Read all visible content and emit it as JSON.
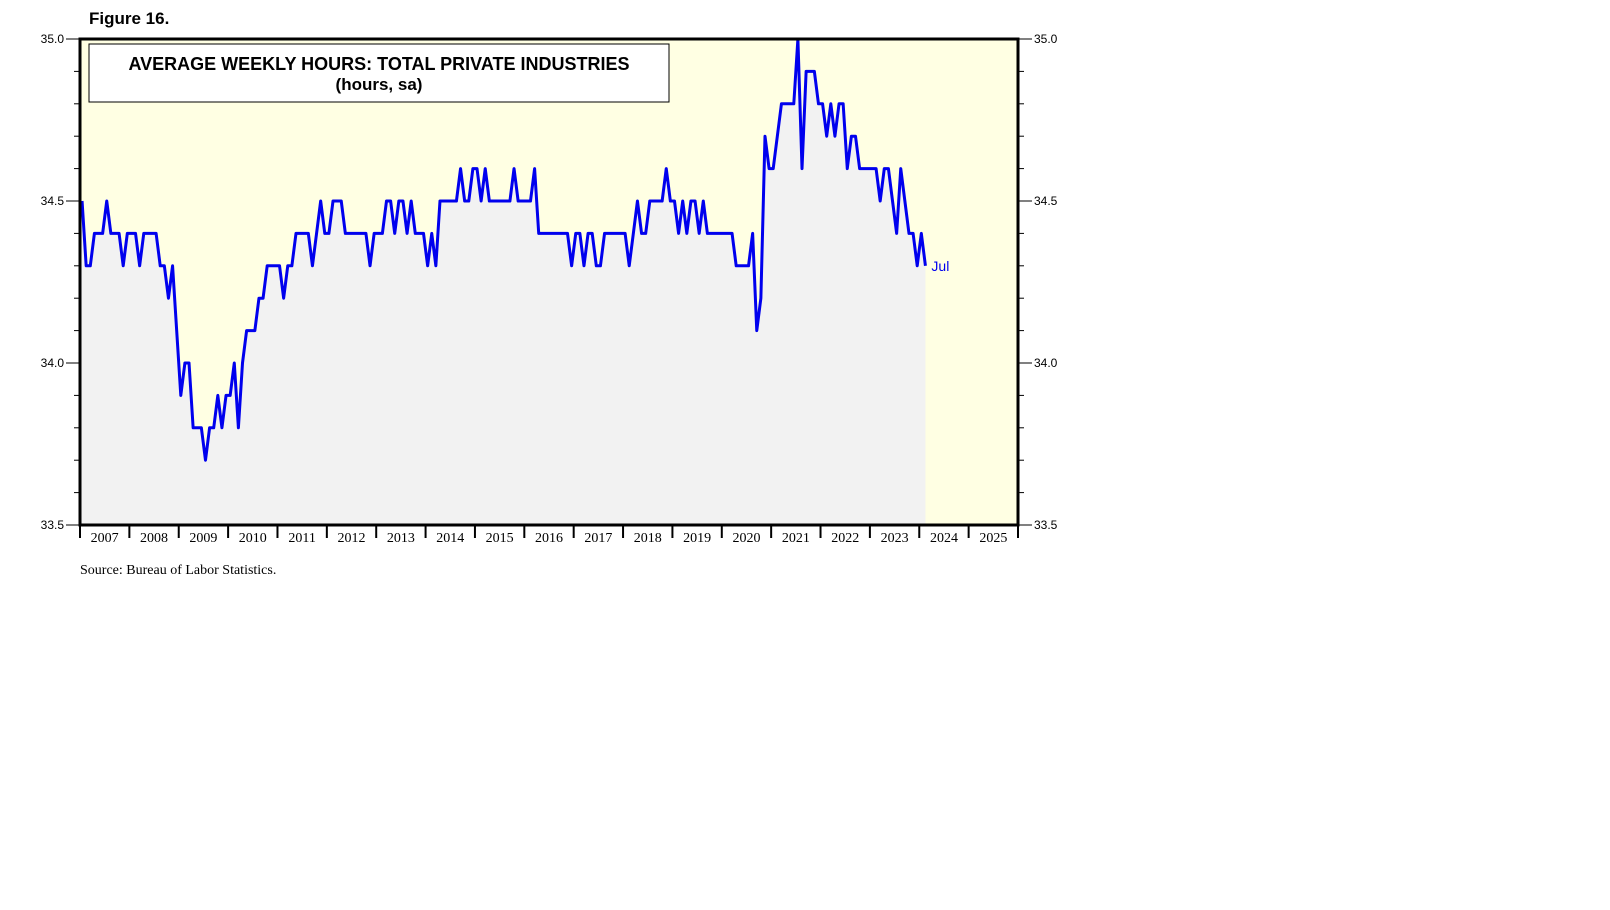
{
  "figure_label": "Figure 16.",
  "source": "Source: Bureau of Labor Statistics.",
  "chart_data": {
    "type": "line",
    "title": "AVERAGE WEEKLY HOURS: TOTAL PRIVATE INDUSTRIES",
    "subtitle": "(hours, sa)",
    "xlabel": "",
    "ylabel": "",
    "ylim": [
      33.5,
      35.0
    ],
    "xlim": [
      "2007-01",
      "2025-12"
    ],
    "y_ticks": [
      "33.5",
      "34.0",
      "34.5",
      "35.0"
    ],
    "x_tick_labels": [
      "2007",
      "2008",
      "2009",
      "2010",
      "2011",
      "2012",
      "2013",
      "2014",
      "2015",
      "2016",
      "2017",
      "2018",
      "2019",
      "2020",
      "2021",
      "2022",
      "2023",
      "2024",
      "2025"
    ],
    "last_point_label": "Jul",
    "grid": false,
    "colors": {
      "line": "#0000ee",
      "plot_background": "#ffffe3",
      "area_fill": "#f2f2f2",
      "last_label": "#0000ee"
    },
    "series": [
      {
        "x_start": "2007-01",
        "frequency": "monthly",
        "values": [
          34.5,
          34.3,
          34.3,
          34.4,
          34.4,
          34.4,
          34.5,
          34.4,
          34.4,
          34.4,
          34.3,
          34.4,
          34.4,
          34.4,
          34.3,
          34.4,
          34.4,
          34.4,
          34.4,
          34.3,
          34.3,
          34.2,
          34.3,
          34.1,
          33.9,
          34.0,
          34.0,
          33.8,
          33.8,
          33.8,
          33.7,
          33.8,
          33.8,
          33.9,
          33.8,
          33.9,
          33.9,
          34.0,
          33.8,
          34.0,
          34.1,
          34.1,
          34.1,
          34.2,
          34.2,
          34.3,
          34.3,
          34.3,
          34.3,
          34.2,
          34.3,
          34.3,
          34.4,
          34.4,
          34.4,
          34.4,
          34.3,
          34.4,
          34.5,
          34.4,
          34.4,
          34.5,
          34.5,
          34.5,
          34.4,
          34.4,
          34.4,
          34.4,
          34.4,
          34.4,
          34.3,
          34.4,
          34.4,
          34.4,
          34.5,
          34.5,
          34.4,
          34.5,
          34.5,
          34.4,
          34.5,
          34.4,
          34.4,
          34.4,
          34.3,
          34.4,
          34.3,
          34.5,
          34.5,
          34.5,
          34.5,
          34.5,
          34.6,
          34.5,
          34.5,
          34.6,
          34.6,
          34.5,
          34.6,
          34.5,
          34.5,
          34.5,
          34.5,
          34.5,
          34.5,
          34.6,
          34.5,
          34.5,
          34.5,
          34.5,
          34.6,
          34.4,
          34.4,
          34.4,
          34.4,
          34.4,
          34.4,
          34.4,
          34.4,
          34.3,
          34.4,
          34.4,
          34.3,
          34.4,
          34.4,
          34.3,
          34.3,
          34.4,
          34.4,
          34.4,
          34.4,
          34.4,
          34.4,
          34.3,
          34.4,
          34.5,
          34.4,
          34.4,
          34.5,
          34.5,
          34.5,
          34.5,
          34.6,
          34.5,
          34.5,
          34.4,
          34.5,
          34.4,
          34.5,
          34.5,
          34.4,
          34.5,
          34.4,
          34.4,
          34.4,
          34.4,
          34.4,
          34.4,
          34.4,
          34.3,
          34.3,
          34.3,
          34.3,
          34.4,
          34.1,
          34.2,
          34.7,
          34.6,
          34.6,
          34.7,
          34.8,
          34.8,
          34.8,
          34.8,
          35.0,
          34.6,
          34.9,
          34.9,
          34.9,
          34.8,
          34.8,
          34.7,
          34.8,
          34.7,
          34.8,
          34.8,
          34.6,
          34.7,
          34.7,
          34.6,
          34.6,
          34.6,
          34.6,
          34.6,
          34.5,
          34.6,
          34.6,
          34.5,
          34.4,
          34.6,
          34.5,
          34.4,
          34.4,
          34.3,
          34.4,
          34.3
        ]
      }
    ]
  }
}
